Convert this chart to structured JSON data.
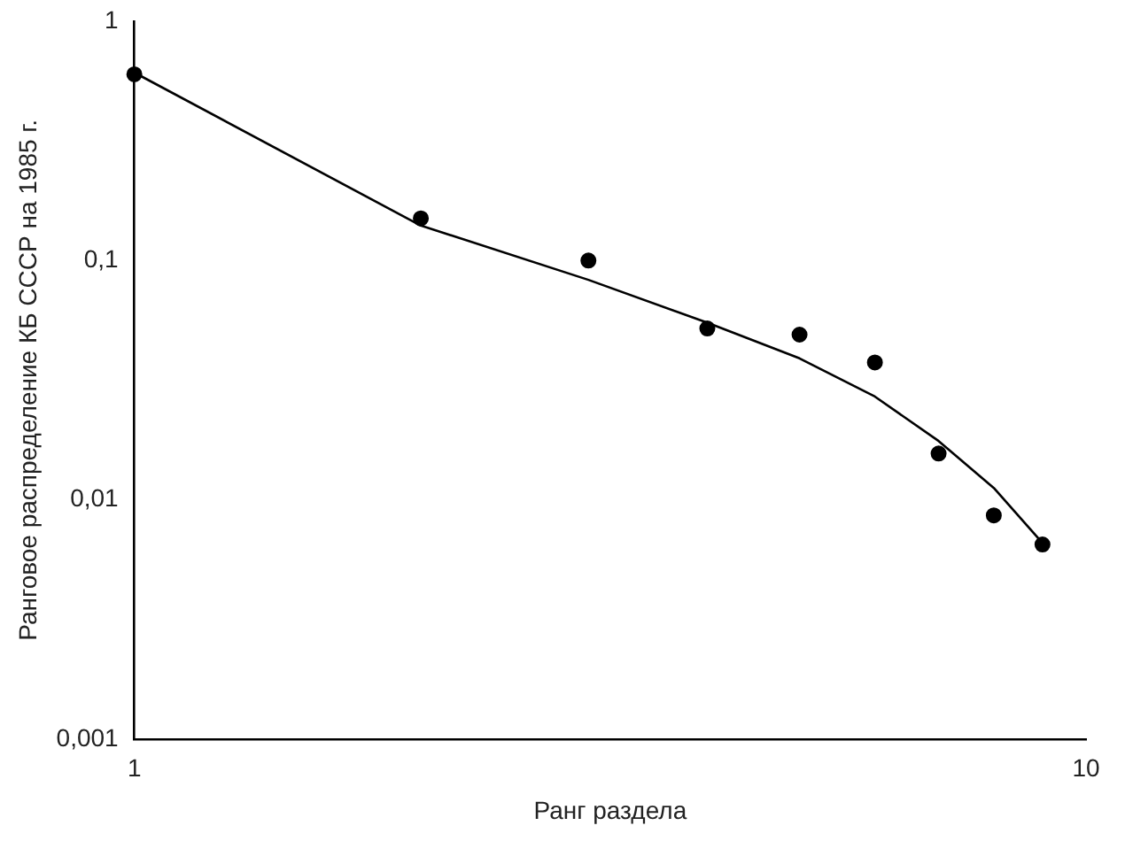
{
  "chart_data": {
    "type": "scatter",
    "xlabel": "Ранг раздела",
    "ylabel": "Ранговое распределение КБ СССР на 1985 г.",
    "log": "xy",
    "grid": false,
    "legend": false,
    "xlim": [
      1,
      10
    ],
    "xticks": [
      1,
      10
    ],
    "ylim": [
      0.001,
      1
    ],
    "yticks": [
      {
        "value": 0.001,
        "label": "0,001"
      },
      {
        "value": 0.01,
        "label": "0,01"
      },
      {
        "value": 0.1,
        "label": "0,1"
      },
      {
        "value": 1,
        "label": "1"
      }
    ],
    "series": [
      {
        "color": "#000000",
        "marker": "circle",
        "x": [
          1,
          2,
          3,
          4,
          5,
          6,
          7,
          8,
          9
        ],
        "values": [
          0.6,
          0.15,
          0.1,
          0.052,
          0.049,
          0.0375,
          0.0156,
          0.0086,
          0.0065
        ]
      },
      {
        "type": "line",
        "color": "#000000",
        "marker": "none",
        "line_style": "solid",
        "x": [
          1,
          2,
          3,
          4,
          5,
          6,
          7,
          8,
          9
        ],
        "values": [
          0.61,
          0.14,
          0.083,
          0.055,
          0.039,
          0.027,
          0.0176,
          0.0112,
          0.0066
        ]
      }
    ]
  }
}
